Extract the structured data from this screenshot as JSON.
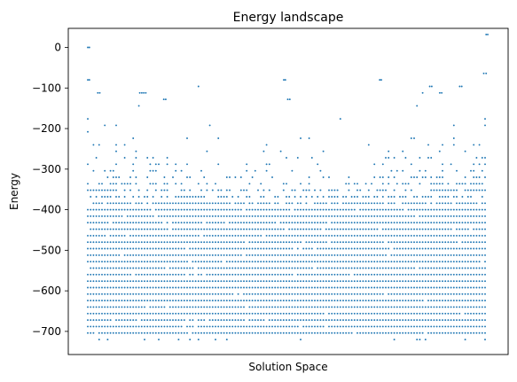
{
  "chart_data": {
    "type": "scatter",
    "title": "Energy landscape",
    "xlabel": "Solution Space",
    "ylabel": "Energy",
    "ylim": [
      -757,
      47
    ],
    "yticks": [
      0,
      -100,
      -200,
      -300,
      -400,
      -500,
      -600,
      -700
    ],
    "xticks_visible": false,
    "grid": false,
    "legend": "none",
    "marker_color": "#1f77b4",
    "energy_step": 16,
    "energy_min": -720,
    "energy_max": 32,
    "dense_bands": {
      "from": -704,
      "to": -400,
      "density": 0.97
    },
    "sparse_profile": [
      {
        "energy": -384,
        "density": 0.78
      },
      {
        "energy": -368,
        "density": 0.6
      },
      {
        "energy": -352,
        "density": 0.48
      },
      {
        "energy": -336,
        "density": 0.36
      },
      {
        "energy": -320,
        "density": 0.27
      },
      {
        "energy": -304,
        "density": 0.2
      },
      {
        "energy": -288,
        "density": 0.13
      },
      {
        "energy": -272,
        "density": 0.09
      },
      {
        "energy": -256,
        "density": 0.06
      },
      {
        "energy": -240,
        "density": 0.045
      },
      {
        "energy": -224,
        "density": 0.033
      },
      {
        "energy": -208,
        "density": 0.022
      },
      {
        "energy": -192,
        "density": 0.016
      },
      {
        "energy": -176,
        "density": 0.01
      },
      {
        "energy": -160,
        "density": 0.007
      },
      {
        "energy": -144,
        "density": 0.005
      },
      {
        "energy": -128,
        "density": 0.004
      },
      {
        "energy": -112,
        "density": 0.003
      },
      {
        "energy": -96,
        "density": 0.002
      },
      {
        "energy": -80,
        "density": 0.0015
      }
    ],
    "bottom_band": {
      "energy": -720,
      "density": 0.12
    },
    "outliers": [
      {
        "x": 0.0,
        "y": 0
      },
      {
        "x": 0.004,
        "y": 0
      },
      {
        "x": 1.0,
        "y": 32
      },
      {
        "x": 0.996,
        "y": 32
      },
      {
        "x": 0.0,
        "y": -80
      },
      {
        "x": 0.004,
        "y": -80
      },
      {
        "x": 0.49,
        "y": -80
      },
      {
        "x": 0.494,
        "y": -80
      },
      {
        "x": 0.73,
        "y": -80
      },
      {
        "x": 0.734,
        "y": -80
      },
      {
        "x": 0.99,
        "y": -64
      },
      {
        "x": 0.996,
        "y": -64
      },
      {
        "x": 0.855,
        "y": -96
      },
      {
        "x": 0.86,
        "y": -96
      },
      {
        "x": 0.93,
        "y": -96
      },
      {
        "x": 0.935,
        "y": -96
      },
      {
        "x": 0.025,
        "y": -112
      },
      {
        "x": 0.03,
        "y": -112
      },
      {
        "x": 0.13,
        "y": -112
      },
      {
        "x": 0.135,
        "y": -112
      },
      {
        "x": 0.14,
        "y": -112
      },
      {
        "x": 0.145,
        "y": -112
      },
      {
        "x": 0.5,
        "y": -128
      },
      {
        "x": 0.505,
        "y": -128
      },
      {
        "x": 0.19,
        "y": -128
      },
      {
        "x": 0.195,
        "y": -128
      },
      {
        "x": 0.88,
        "y": -112
      },
      {
        "x": 0.885,
        "y": -112
      }
    ]
  }
}
